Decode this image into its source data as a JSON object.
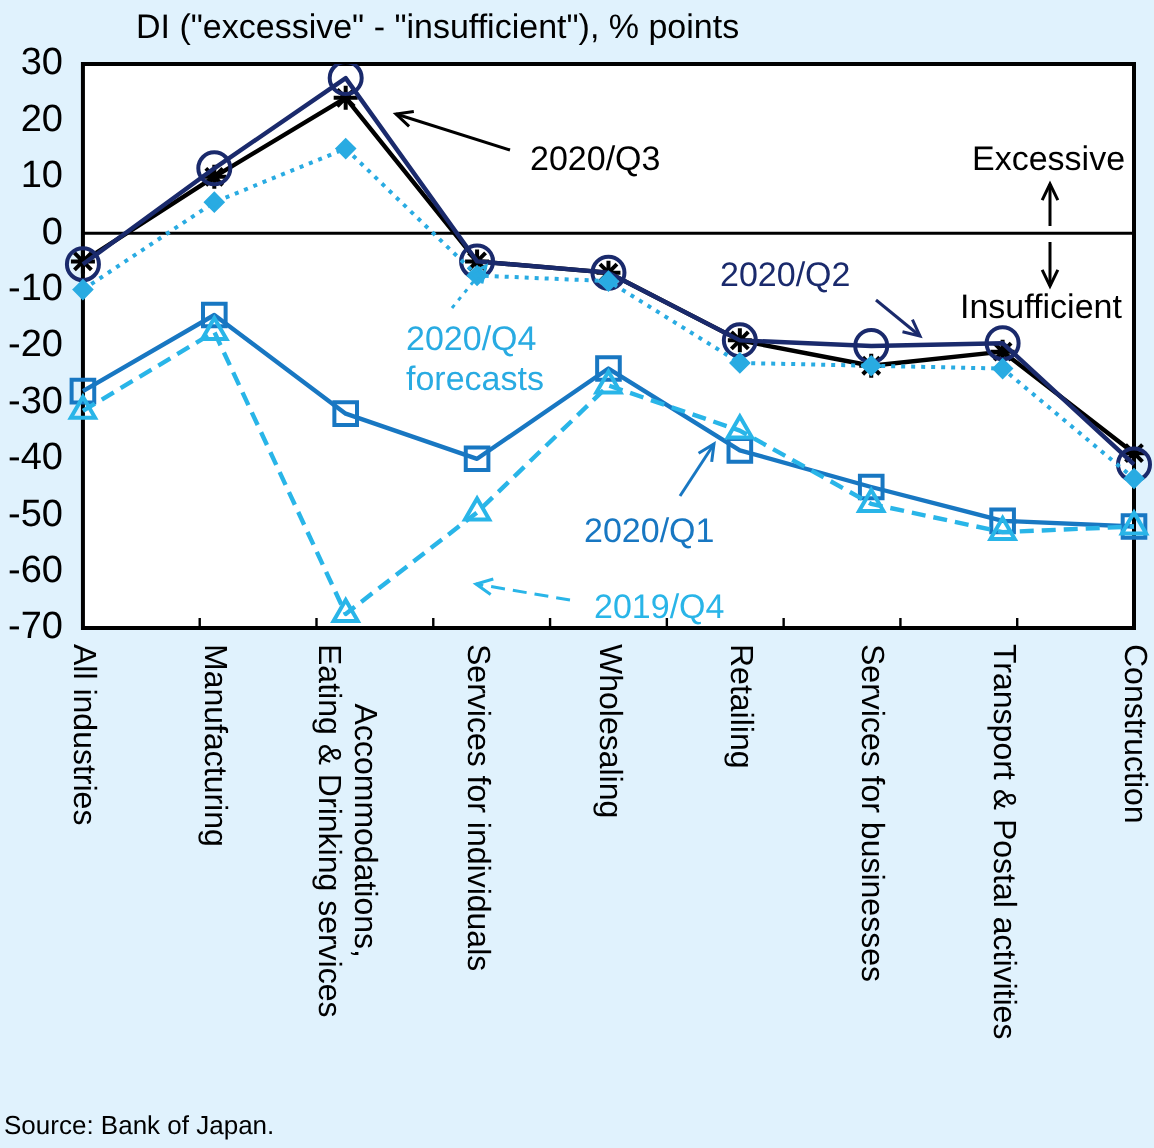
{
  "chart_data": {
    "type": "line",
    "title": "DI (\"excessive\" - \"insufficient\"), % points",
    "categories": [
      "All industries",
      "Manufacturing",
      "Accommodations, Eating & Drinking services",
      "Services for individuals",
      "Wholesaling",
      "Retailing",
      "Services for businesses",
      "Transport & Postal activities",
      "Construction"
    ],
    "series": [
      {
        "name": "2020/Q3",
        "color": "#000000",
        "marker": "cross",
        "line_style": "solid",
        "values": [
          -5,
          10,
          24,
          -5,
          -7,
          -19,
          -23.5,
          -21,
          -39
        ]
      },
      {
        "name": "2020/Q2",
        "color": "#1a2a6c",
        "marker": "circle",
        "line_style": "solid",
        "values": [
          -5.5,
          11.5,
          27.5,
          -5,
          -7,
          -19,
          -20,
          -19.5,
          -41
        ]
      },
      {
        "name": "2020/Q4 forecasts",
        "color": "#29abe2",
        "marker": "diamond",
        "line_style": "dotted",
        "values": [
          -10,
          5.5,
          15,
          -7.5,
          -8.5,
          -23,
          -23.5,
          -24,
          -43.5
        ]
      },
      {
        "name": "2020/Q1",
        "color": "#1877c2",
        "marker": "square",
        "line_style": "solid",
        "values": [
          -28,
          -14.5,
          -32,
          -40,
          -24,
          -38.5,
          -45,
          -51,
          -52
        ]
      },
      {
        "name": "2019/Q4",
        "color": "#29b5e8",
        "marker": "triangle",
        "line_style": "dashed",
        "values": [
          -31.5,
          -17.5,
          -67.5,
          -49.5,
          -27,
          -35,
          -48,
          -53,
          -52
        ]
      }
    ],
    "ylim": [
      -70,
      30
    ],
    "yticks": [
      -70,
      -60,
      -50,
      -40,
      -30,
      -20,
      -10,
      0,
      10,
      20,
      30
    ],
    "grid": false,
    "legend": "center",
    "ref_lines": [
      {
        "axis": "y",
        "value": 0,
        "color": "#000000"
      }
    ],
    "annotations": [
      "Excessive",
      "Insufficient",
      "Source: Bank of Japan."
    ]
  }
}
